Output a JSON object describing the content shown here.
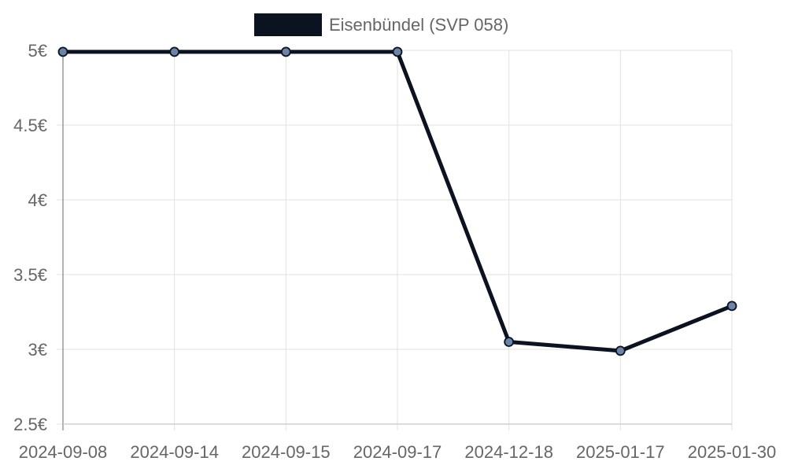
{
  "chart_data": {
    "type": "line",
    "categories": [
      "2024-09-08",
      "2024-09-14",
      "2024-09-15",
      "2024-09-17",
      "2024-12-18",
      "2025-01-17",
      "2025-01-30"
    ],
    "series": [
      {
        "name": "Eisenbündel (SVP 058)",
        "values": [
          4.99,
          4.99,
          4.99,
          4.99,
          3.05,
          2.99,
          3.29
        ],
        "color": "#0b1220",
        "point_fill": "#6b84a8"
      }
    ],
    "y_ticks": [
      2.5,
      3,
      3.5,
      4,
      4.5,
      5
    ],
    "y_tick_labels": [
      "2.5€",
      "3€",
      "3.5€",
      "4€",
      "4.5€",
      "5€"
    ],
    "ylim": [
      2.5,
      5
    ],
    "grid": true,
    "legend": "top-center"
  }
}
